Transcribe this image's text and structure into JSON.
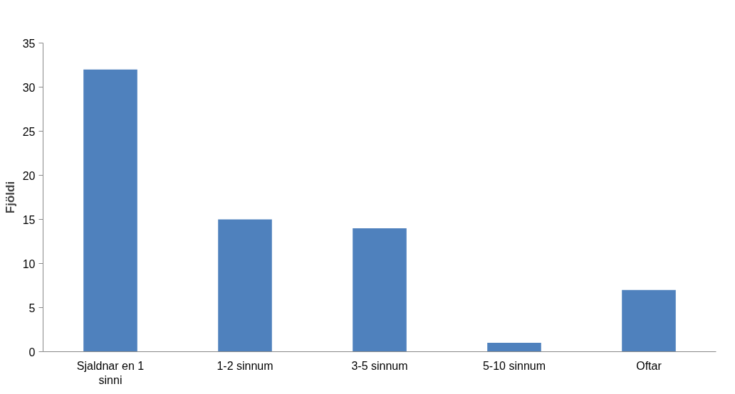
{
  "chart_data": {
    "type": "bar",
    "ylabel": "Fjöldi",
    "categories": [
      "Sjaldnar en 1 sinni",
      "1-2 sinnum",
      "3-5 sinnum",
      "5-10 sinnum",
      "Oftar"
    ],
    "values": [
      32,
      15,
      14,
      1,
      7
    ],
    "color": "#4f81bd",
    "ylim": [
      0,
      35
    ],
    "yticks": [
      0,
      5,
      10,
      15,
      20,
      25,
      30,
      35
    ],
    "grid": false
  }
}
